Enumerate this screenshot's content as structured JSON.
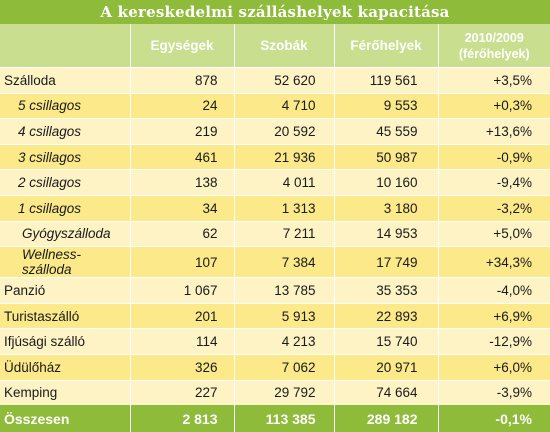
{
  "title": "A kereskedelmi szálláshelyek kapacitása",
  "headers": [
    "",
    "Egységek",
    "Szobák",
    "Férőhelyek",
    "2010/2009 (férőhelyek)"
  ],
  "header_last_lines": [
    "2010/2009",
    "(férőhelyek)"
  ],
  "rows": [
    {
      "name": "Szálloda",
      "units": "878",
      "rooms": "52 620",
      "beds": "119 561",
      "change": "+3,5%",
      "level": 0
    },
    {
      "name": "5 csillagos",
      "units": "24",
      "rooms": "4 710",
      "beds": "9 553",
      "change": "+0,3%",
      "level": 1
    },
    {
      "name": "4 csillagos",
      "units": "219",
      "rooms": "20 592",
      "beds": "45 559",
      "change": "+13,6%",
      "level": 1
    },
    {
      "name": "3 csillagos",
      "units": "461",
      "rooms": "21 936",
      "beds": "50 987",
      "change": "-0,9%",
      "level": 1
    },
    {
      "name": "2 csillagos",
      "units": "138",
      "rooms": "4 011",
      "beds": "10 160",
      "change": "-9,4%",
      "level": 1
    },
    {
      "name": "1 csillagos",
      "units": "34",
      "rooms": "1 313",
      "beds": "3 180",
      "change": "-3,2%",
      "level": 1
    },
    {
      "name": "Gyógyszálloda",
      "units": "62",
      "rooms": "7 211",
      "beds": "14 953",
      "change": "+5,0%",
      "level": 2
    },
    {
      "name": "Wellness-szálloda",
      "units": "107",
      "rooms": "7 384",
      "beds": "17 749",
      "change": "+34,3%",
      "level": 2
    },
    {
      "name": "Panzió",
      "units": "1 067",
      "rooms": "13 785",
      "beds": "35 353",
      "change": "-4,0%",
      "level": 0
    },
    {
      "name": "Turistaszálló",
      "units": "201",
      "rooms": "5 913",
      "beds": "22 893",
      "change": "+6,9%",
      "level": 0
    },
    {
      "name": "Ifjúsági szálló",
      "units": "114",
      "rooms": "4 213",
      "beds": "15 740",
      "change": "-12,9%",
      "level": 0
    },
    {
      "name": "Üdülőház",
      "units": "326",
      "rooms": "7 062",
      "beds": "20 971",
      "change": "+6,0%",
      "level": 0
    },
    {
      "name": "Kemping",
      "units": "227",
      "rooms": "29 792",
      "beds": "74 664",
      "change": "-3,9%",
      "level": 0
    }
  ],
  "total": {
    "name": "Összesen",
    "units": "2 813",
    "rooms": "113 385",
    "beds": "289 182",
    "change": "-0,1%"
  },
  "colors": {
    "header_green": "#8fbb3a",
    "column_header": "#c9de8e",
    "row_light": "#fdf3c4",
    "row_dark": "#fbe98a"
  }
}
